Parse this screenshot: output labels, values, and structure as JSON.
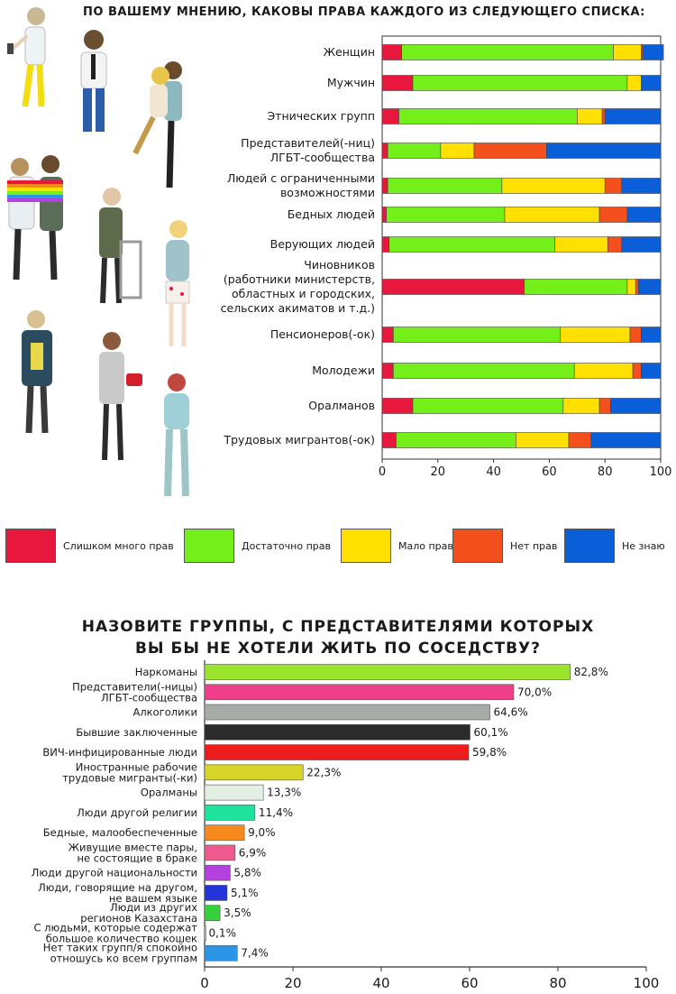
{
  "chart_data": [
    {
      "type": "bar",
      "orientation": "horizontal",
      "stacked": true,
      "title": "ПО ВАШЕМУ МНЕНИЮ, КАКОВЫ ПРАВА КАЖДОГО ИЗ СЛЕДУЮЩЕГО СПИСКА:",
      "categories": [
        [
          "Женщин"
        ],
        [
          "Мужчин"
        ],
        [
          "Этнических групп"
        ],
        [
          "Представителей(-ниц)",
          "ЛГБТ-сообщества"
        ],
        [
          "Людей с ограниченными",
          "возможностями"
        ],
        [
          "Бедных людей"
        ],
        [
          "Верующих людей"
        ],
        [
          "Чиновников",
          "(работники министерств,",
          "областных и городских,",
          "сельских акиматов и т.д.)"
        ],
        [
          "Пенсионеров(-ок)"
        ],
        [
          "Молодежи"
        ],
        [
          "Оралманов"
        ],
        [
          "Трудовых мигрантов(-ок)"
        ]
      ],
      "series": [
        {
          "name": "Слишком много прав",
          "color": "#e8173e",
          "values": [
            7,
            11,
            6,
            2,
            2,
            1.5,
            2.5,
            51,
            4,
            4,
            11,
            5
          ]
        },
        {
          "name": "Достаточно прав",
          "color": "#75ef1a",
          "values": [
            76,
            77,
            64,
            19,
            41,
            42.5,
            59.5,
            37,
            60,
            65,
            54,
            43
          ]
        },
        {
          "name": "Мало прав",
          "color": "#ffe000",
          "values": [
            10,
            5,
            9,
            12,
            37,
            34,
            19,
            3,
            25,
            21,
            13,
            19
          ]
        },
        {
          "name": "Нет прав",
          "color": "#f3501e",
          "values": [
            0.5,
            0,
            1,
            26,
            6,
            10,
            5,
            1,
            4,
            3,
            4,
            8
          ]
        },
        {
          "name": "Не знаю",
          "color": "#0a5fd8",
          "values": [
            7.5,
            7,
            20,
            41,
            14,
            12,
            14,
            8,
            7,
            7,
            18,
            25
          ]
        }
      ],
      "xlim": [
        0,
        100
      ],
      "xticks": [
        0,
        20,
        40,
        60,
        80,
        100
      ],
      "legend_position": "bottom"
    },
    {
      "type": "bar",
      "orientation": "horizontal",
      "title": [
        "НАЗОВИТЕ ГРУППЫ, С ПРЕДСТАВИТЕЛЯМИ КОТОРЫХ",
        "ВЫ БЫ НЕ ХОТЕЛИ ЖИТЬ ПО СОСЕДСТВУ?"
      ],
      "categories": [
        [
          "Наркоманы"
        ],
        [
          "Представители(-ницы)",
          "ЛГБТ-сообщества"
        ],
        [
          "Алкоголики"
        ],
        [
          "Бывшие заключенные"
        ],
        [
          "ВИЧ-инфицированные люди"
        ],
        [
          "Иностранные рабочие",
          "трудовые мигранты(-ки)"
        ],
        [
          "Оралманы"
        ],
        [
          "Люди другой религии"
        ],
        [
          "Бедные, малообеспеченные"
        ],
        [
          "Живущие вместе пары,",
          "не состоящие в браке"
        ],
        [
          "Люди другой национальности"
        ],
        [
          "Люди, говорящие на другом,",
          "не вашем языке"
        ],
        [
          "Люди из других",
          "регионов Казахстана"
        ],
        [
          "С людьми, которые содержат",
          "большое количество кошек"
        ],
        [
          "Нет таких групп/я спокойно",
          "отношусь ко всем группам"
        ]
      ],
      "values": [
        82.8,
        70.0,
        64.6,
        60.1,
        59.8,
        22.3,
        13.3,
        11.4,
        9.0,
        6.9,
        5.8,
        5.1,
        3.5,
        0.1,
        7.4
      ],
      "value_labels": [
        "82,8%",
        "70,0%",
        "64,6%",
        "60,1%",
        "59,8%",
        "22,3%",
        "13,3%",
        "11,4%",
        "9,0%",
        "6,9%",
        "5,8%",
        "5,1%",
        "3,5%",
        "0,1%",
        "7,4%"
      ],
      "colors": [
        "#9be52e",
        "#ef3f8a",
        "#a7aba8",
        "#2b2b2b",
        "#ee1c1c",
        "#d6d427",
        "#e3efe3",
        "#1ee39c",
        "#f68a1e",
        "#ee5a8e",
        "#b440e0",
        "#2434d8",
        "#33d23a",
        "#e6ec8a",
        "#2b95e8"
      ],
      "xlim": [
        0,
        100
      ],
      "xticks": [
        0,
        20,
        40,
        60,
        80,
        100
      ]
    }
  ]
}
